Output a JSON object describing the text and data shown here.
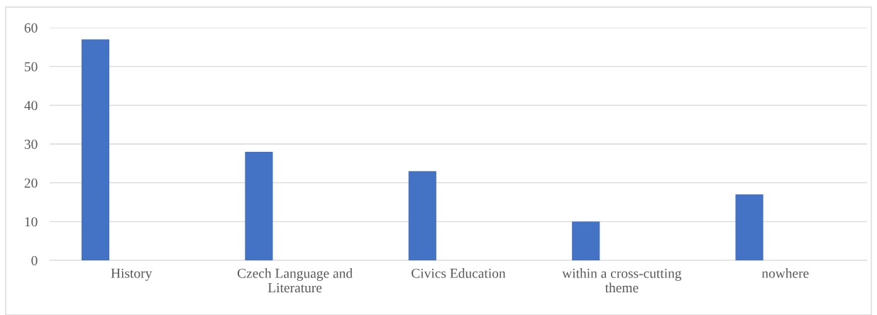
{
  "chart_data": {
    "type": "bar",
    "categories": [
      "History",
      "Czech Language and\nLiterature",
      "Civics Education",
      "within a cross-cutting\ntheme",
      "nowhere"
    ],
    "values": [
      57,
      28,
      23,
      10,
      17
    ],
    "color": "#4472c4",
    "ylim": [
      0,
      60
    ],
    "yticks": [
      0,
      10,
      20,
      30,
      40,
      50,
      60
    ],
    "grid": "y"
  }
}
